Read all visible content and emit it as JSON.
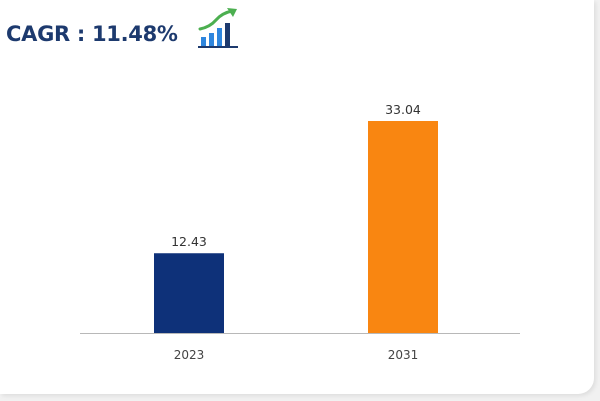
{
  "header": {
    "cagr_label": "CAGR : 11.48%",
    "icon": "rising-bar-chart-icon"
  },
  "colors": {
    "title": "#1d3a6e",
    "bar_2023": "#0e3179",
    "bar_2031": "#f98611",
    "axis": "#b8b8b8",
    "icon_bars": "#2e86de",
    "icon_arrow": "#4caf50"
  },
  "chart_data": {
    "type": "bar",
    "categories": [
      "2023",
      "2031"
    ],
    "values": [
      12.43,
      33.04
    ],
    "value_labels": [
      "12.43",
      "33.04"
    ],
    "bar_colors": [
      "#0e3179",
      "#f98611"
    ],
    "title": "",
    "xlabel": "",
    "ylabel": "",
    "ylim": [
      0,
      36
    ],
    "grid": false,
    "legend": "none"
  }
}
